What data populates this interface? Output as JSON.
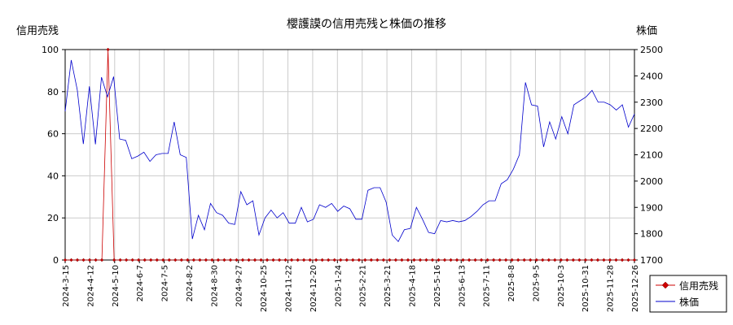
{
  "chart_data": {
    "type": "line",
    "title": "櫻護謨の信用売残と株価の推移",
    "left_axis_label": "信用売残",
    "right_axis_label": "株価",
    "left_ylim": [
      0,
      100
    ],
    "left_yticks": [
      0,
      20,
      40,
      60,
      80,
      100
    ],
    "right_ylim": [
      1700,
      2500
    ],
    "right_yticks": [
      1700,
      1800,
      1900,
      2000,
      2100,
      2200,
      2300,
      2400,
      2500
    ],
    "x_tick_labels": [
      "2024-3-15",
      "2024-4-12",
      "2024-5-10",
      "2024-6-7",
      "2024-7-5",
      "2024-8-2",
      "2024-8-30",
      "2024-9-27",
      "2024-10-25",
      "2024-11-22",
      "2024-12-20",
      "2025-1-24",
      "2025-2-21",
      "2025-3-21",
      "2025-4-18",
      "2025-5-16",
      "2025-6-13",
      "2025-7-11",
      "2025-8-8",
      "2025-9-5",
      "2025-10-3",
      "2025-10-31",
      "2025-11-28",
      "2025-12-26"
    ],
    "grid": true,
    "legend_position": "bottom-right",
    "legend": [
      {
        "name": "信用売残",
        "color": "#cc0000",
        "marker": "diamond"
      },
      {
        "name": "株価",
        "color": "#0000cc",
        "marker": "none"
      }
    ],
    "series": [
      {
        "name": "信用売残",
        "axis": "left",
        "color": "#cc0000",
        "values": [
          0,
          0,
          0,
          0,
          0,
          0,
          0,
          100,
          0,
          0,
          0,
          0,
          0,
          0,
          0,
          0,
          0,
          0,
          0,
          0,
          0,
          0,
          0,
          0,
          0,
          0,
          0,
          0,
          0,
          0,
          0,
          0,
          0,
          0,
          0,
          0,
          0,
          0,
          0,
          0,
          0,
          0,
          0,
          0,
          0,
          0,
          0,
          0,
          0,
          0,
          0,
          0,
          0,
          0,
          0,
          0,
          0,
          0,
          0,
          0,
          0,
          0,
          0,
          0,
          0,
          0,
          0,
          0,
          0,
          0,
          0,
          0,
          0,
          0,
          0,
          0,
          0,
          0,
          0,
          0,
          0,
          0,
          0,
          0,
          0,
          0,
          0,
          0,
          0,
          0,
          0,
          0,
          0,
          0
        ]
      },
      {
        "name": "株価",
        "axis": "right",
        "color": "#0000cc",
        "values": [
          2265,
          2460,
          2347,
          2141,
          2360,
          2140,
          2395,
          2320,
          2397,
          2160,
          2155,
          2085,
          2095,
          2110,
          2075,
          2100,
          2105,
          2105,
          2225,
          2100,
          2090,
          1780,
          1870,
          1815,
          1915,
          1880,
          1870,
          1840,
          1835,
          1960,
          1910,
          1925,
          1795,
          1860,
          1890,
          1860,
          1880,
          1840,
          1840,
          1900,
          1845,
          1855,
          1910,
          1900,
          1915,
          1885,
          1905,
          1895,
          1855,
          1855,
          1965,
          1975,
          1975,
          1920,
          1795,
          1770,
          1815,
          1820,
          1900,
          1855,
          1805,
          1800,
          1850,
          1845,
          1850,
          1845,
          1850,
          1865,
          1885,
          1910,
          1925,
          1925,
          1990,
          2005,
          2045,
          2100,
          2375,
          2290,
          2285,
          2130,
          2225,
          2160,
          2245,
          2180,
          2290,
          2305,
          2320,
          2345,
          2300,
          2300,
          2290,
          2270,
          2290,
          2205,
          2255
        ]
      }
    ]
  }
}
